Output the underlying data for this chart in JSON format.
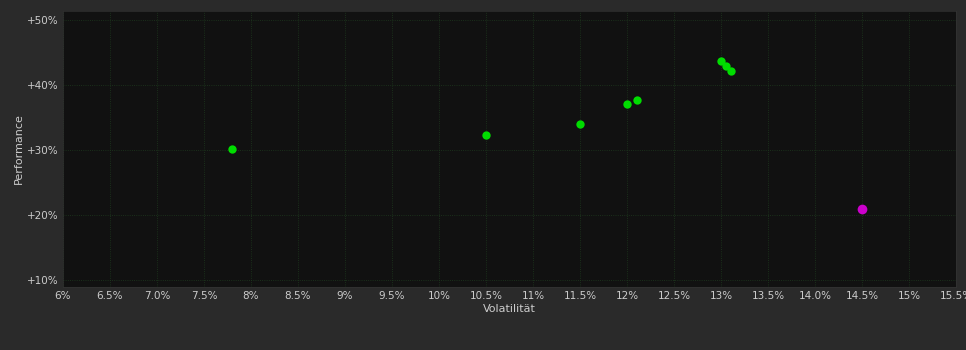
{
  "background_color": "#2a2a2a",
  "plot_bg_color": "#111111",
  "grid_color": "#1e3a1e",
  "xlabel": "Volatilität",
  "ylabel": "Performance",
  "xmin": 0.06,
  "xmax": 0.155,
  "ymin": 0.09,
  "ymax": 0.515,
  "xticks": [
    0.06,
    0.065,
    0.07,
    0.075,
    0.08,
    0.085,
    0.09,
    0.095,
    0.1,
    0.105,
    0.11,
    0.115,
    0.12,
    0.125,
    0.13,
    0.135,
    0.14,
    0.145,
    0.15,
    0.155
  ],
  "yticks": [
    0.1,
    0.2,
    0.3,
    0.4,
    0.5
  ],
  "green_points": [
    [
      0.078,
      0.302
    ],
    [
      0.105,
      0.323
    ],
    [
      0.115,
      0.34
    ],
    [
      0.12,
      0.372
    ],
    [
      0.121,
      0.378
    ],
    [
      0.13,
      0.437
    ],
    [
      0.1305,
      0.43
    ],
    [
      0.131,
      0.422
    ]
  ],
  "magenta_points": [
    [
      0.145,
      0.21
    ]
  ],
  "green_color": "#00dd00",
  "magenta_color": "#cc00cc",
  "text_color": "#cccccc",
  "tick_label_color": "#cccccc",
  "xlabel_fontsize": 8,
  "ylabel_fontsize": 8,
  "tick_fontsize": 7.5,
  "marker_size": 6
}
